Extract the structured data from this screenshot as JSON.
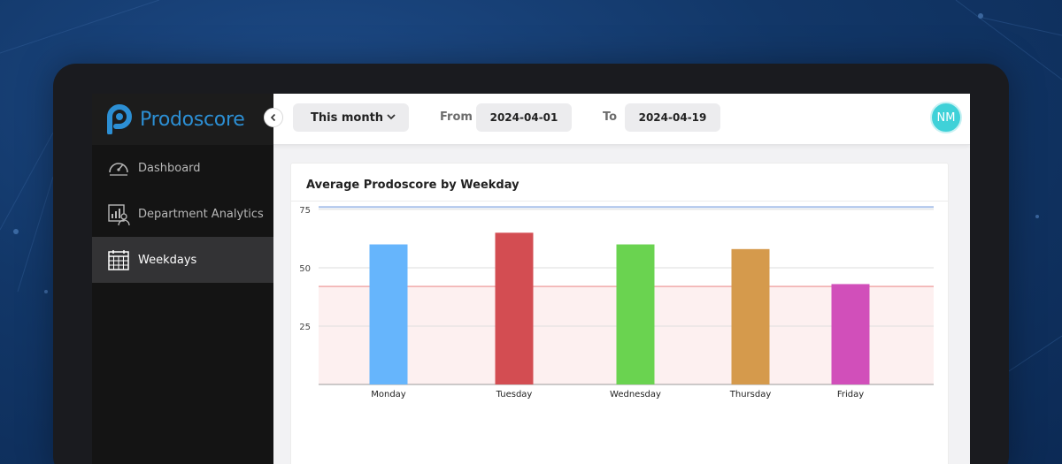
{
  "sidebar": {
    "brand_name": "Prodoscore",
    "items": [
      {
        "label": "Dashboard",
        "icon": "gauge-icon",
        "active": false
      },
      {
        "label": "Department Analytics",
        "icon": "analytics-icon",
        "active": false
      },
      {
        "label": "Weekdays",
        "icon": "calendar-icon",
        "active": true
      }
    ]
  },
  "topbar": {
    "period_value": "This month",
    "from_label": "From",
    "from_value": "2024-04-01",
    "to_label": "To",
    "to_value": "2024-04-19",
    "avatar_initials": "NM"
  },
  "card": {
    "title": "Average Prodoscore by Weekday"
  },
  "colors": {
    "brand": "#2c8fd4",
    "avatar": "#3fd1d8",
    "upper_line": "#a9c1ea",
    "lower_line": "#f0a9a9",
    "lower_band": "#fdf0f0"
  },
  "chart_data": {
    "type": "bar",
    "title": "Average Prodoscore by Weekday",
    "categories": [
      "Monday",
      "Tuesday",
      "Wednesday",
      "Thursday",
      "Friday"
    ],
    "values": [
      60,
      65,
      60,
      58,
      43
    ],
    "colors": [
      "#66b5fc",
      "#d34d52",
      "#6ad350",
      "#d59a4c",
      "#d14fba"
    ],
    "y_ticks": [
      25,
      50,
      75
    ],
    "ylim": [
      0,
      78
    ],
    "reference_lines": [
      76,
      42
    ],
    "shaded_band": [
      0,
      42
    ],
    "grid": true,
    "legend": "none"
  }
}
